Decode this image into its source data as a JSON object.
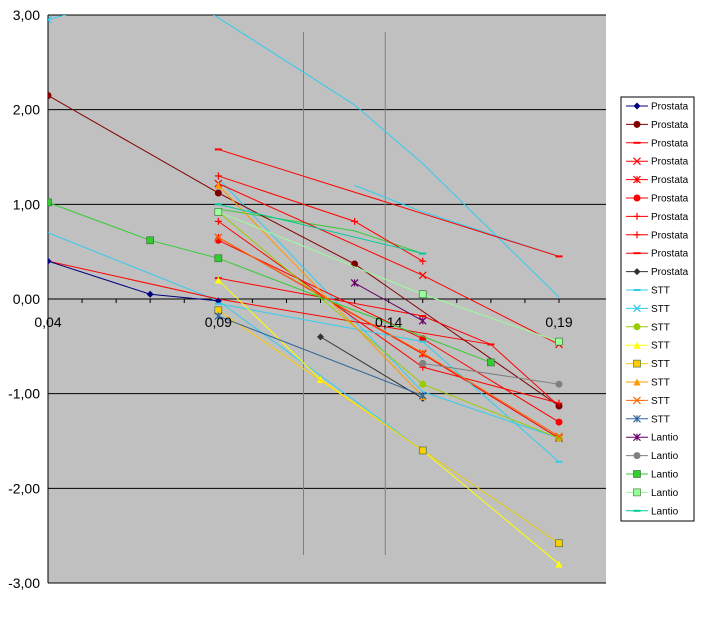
{
  "chart_data": {
    "type": "line",
    "title": "",
    "xlabel": "",
    "ylabel": "",
    "xlim": [
      0.04,
      0.19
    ],
    "ylim": [
      -3,
      3
    ],
    "x_ticks": [
      "0,04",
      "0,09",
      "0,14",
      "0,19"
    ],
    "y_ticks": [
      "3,00",
      "2,00",
      "1,00",
      "0,00",
      "-1,00",
      "-2,00",
      "-3,00"
    ],
    "plot_background": "#c0c0c0",
    "gridlines": "horizontal",
    "legend_position": "right",
    "series": [
      {
        "name": "Prostata",
        "color": "#000080",
        "marker": "diamond",
        "points": [
          [
            0.04,
            0.4
          ],
          [
            0.07,
            0.05
          ],
          [
            0.09,
            -0.02
          ]
        ]
      },
      {
        "name": "Prostata",
        "color": "#800000",
        "marker": "circle",
        "points": [
          [
            0.04,
            2.15
          ],
          [
            0.09,
            1.12
          ],
          [
            0.13,
            0.37
          ],
          [
            0.19,
            -1.13
          ]
        ]
      },
      {
        "name": "Prostata",
        "color": "#ff0000",
        "marker": "dash",
        "points": [
          [
            0.09,
            1.58
          ],
          [
            0.19,
            0.45
          ]
        ]
      },
      {
        "name": "Prostata",
        "color": "#ff0000",
        "marker": "x",
        "points": [
          [
            0.09,
            1.22
          ],
          [
            0.15,
            0.25
          ],
          [
            0.19,
            -0.48
          ]
        ]
      },
      {
        "name": "Prostata",
        "color": "#ff0000",
        "marker": "star",
        "points": [
          [
            0.09,
            0.65
          ],
          [
            0.15,
            -0.58
          ],
          [
            0.19,
            -1.47
          ]
        ]
      },
      {
        "name": "Prostata",
        "color": "#ff0000",
        "marker": "circle",
        "points": [
          [
            0.09,
            0.62
          ],
          [
            0.15,
            -0.42
          ],
          [
            0.19,
            -1.3
          ]
        ]
      },
      {
        "name": "Prostata",
        "color": "#ff0000",
        "marker": "plus",
        "points": [
          [
            0.09,
            1.3
          ],
          [
            0.13,
            0.82
          ],
          [
            0.15,
            0.4
          ]
        ]
      },
      {
        "name": "Prostata",
        "color": "#ff0000",
        "marker": "plus",
        "points": [
          [
            0.09,
            0.82
          ],
          [
            0.15,
            -0.72
          ],
          [
            0.19,
            -1.1
          ]
        ]
      },
      {
        "name": "Prostata",
        "color": "#ff0000",
        "marker": "dash",
        "points": [
          [
            0.09,
            0.22
          ],
          [
            0.15,
            -0.18
          ],
          [
            0.17,
            -0.48
          ]
        ]
      },
      {
        "name": "Prostata",
        "color": "#333333",
        "marker": "diamond",
        "points": [
          [
            0.12,
            -0.4
          ],
          [
            0.15,
            -1.05
          ]
        ]
      },
      {
        "name": "STT",
        "color": "#33ccee",
        "marker": "dash",
        "points": [
          [
            0.09,
            -0.05
          ],
          [
            0.15,
            -0.45
          ],
          [
            0.19,
            -1.72
          ]
        ]
      },
      {
        "name": "STT",
        "color": "#33ccee",
        "marker": "x",
        "points": [
          [
            0.04,
            2.95
          ],
          [
            0.05,
            3.05
          ]
        ]
      },
      {
        "name": "STT",
        "color": "#99cc00",
        "marker": "circle",
        "points": [
          [
            0.09,
            0.92
          ],
          [
            0.15,
            -0.9
          ],
          [
            0.19,
            -1.47
          ]
        ]
      },
      {
        "name": "STT",
        "color": "#ffff00",
        "marker": "triangle",
        "points": [
          [
            0.09,
            0.2
          ],
          [
            0.12,
            -0.85
          ],
          [
            0.15,
            -1.6
          ],
          [
            0.19,
            -2.8
          ]
        ]
      },
      {
        "name": "STT",
        "color": "#ffcc00",
        "marker": "square",
        "points": [
          [
            0.09,
            -0.12
          ],
          [
            0.15,
            -1.6
          ],
          [
            0.19,
            -2.58
          ]
        ]
      },
      {
        "name": "STT",
        "color": "#ff9900",
        "marker": "triangle",
        "points": [
          [
            0.09,
            1.2
          ],
          [
            0.15,
            -1.03
          ]
        ]
      },
      {
        "name": "STT",
        "color": "#ff6600",
        "marker": "x",
        "points": [
          [
            0.09,
            0.65
          ],
          [
            0.15,
            -0.57
          ],
          [
            0.19,
            -1.45
          ]
        ]
      },
      {
        "name": "STT",
        "color": "#336699",
        "marker": "star",
        "points": [
          [
            0.09,
            -0.18
          ],
          [
            0.15,
            -1.02
          ]
        ]
      },
      {
        "name": "Lantio",
        "color": "#660066",
        "marker": "star",
        "points": [
          [
            0.13,
            0.17
          ],
          [
            0.15,
            -0.23
          ]
        ]
      },
      {
        "name": "Lantio",
        "color": "#808080",
        "marker": "circle",
        "points": [
          [
            0.15,
            -0.68
          ],
          [
            0.19,
            -0.9
          ]
        ]
      },
      {
        "name": "Lantio",
        "color": "#33cc33",
        "marker": "square",
        "points": [
          [
            0.04,
            1.02
          ],
          [
            0.07,
            0.62
          ],
          [
            0.09,
            0.43
          ],
          [
            0.17,
            -0.67
          ]
        ]
      },
      {
        "name": "Lantio",
        "color": "#99ff99",
        "marker": "square",
        "points": [
          [
            0.09,
            0.92
          ],
          [
            0.15,
            0.05
          ],
          [
            0.19,
            -0.45
          ]
        ]
      },
      {
        "name": "Lantio",
        "color": "#00cc99",
        "marker": "dash",
        "points": [
          [
            0.09,
            1.0
          ],
          [
            0.15,
            0.48
          ]
        ]
      }
    ],
    "extra_lines": [
      {
        "color": "#33ccee",
        "points": [
          [
            0.08,
            3.2
          ],
          [
            0.13,
            2.05
          ],
          [
            0.15,
            1.43
          ],
          [
            0.19,
            0.02
          ]
        ]
      },
      {
        "color": "#33ccee",
        "points": [
          [
            0.13,
            1.2
          ],
          [
            0.15,
            0.92
          ],
          [
            0.19,
            0.45
          ]
        ]
      },
      {
        "color": "#33ccee",
        "points": [
          [
            0.04,
            0.7
          ],
          [
            0.09,
            -0.02
          ],
          [
            0.15,
            -1.6
          ],
          [
            0.19,
            -2.58
          ]
        ]
      },
      {
        "color": "#33ccee",
        "points": [
          [
            0.09,
            1.27
          ],
          [
            0.15,
            -0.98
          ],
          [
            0.19,
            -1.47
          ]
        ]
      },
      {
        "color": "#33cc33",
        "points": [
          [
            0.09,
            0.95
          ],
          [
            0.13,
            0.72
          ],
          [
            0.15,
            0.48
          ]
        ]
      },
      {
        "color": "#ff0000",
        "points": [
          [
            0.04,
            0.4
          ],
          [
            0.09,
            0.0
          ],
          [
            0.17,
            -0.48
          ],
          [
            0.19,
            -1.13
          ]
        ]
      }
    ],
    "vertical_marker_lines": [
      0.115,
      0.139
    ]
  }
}
